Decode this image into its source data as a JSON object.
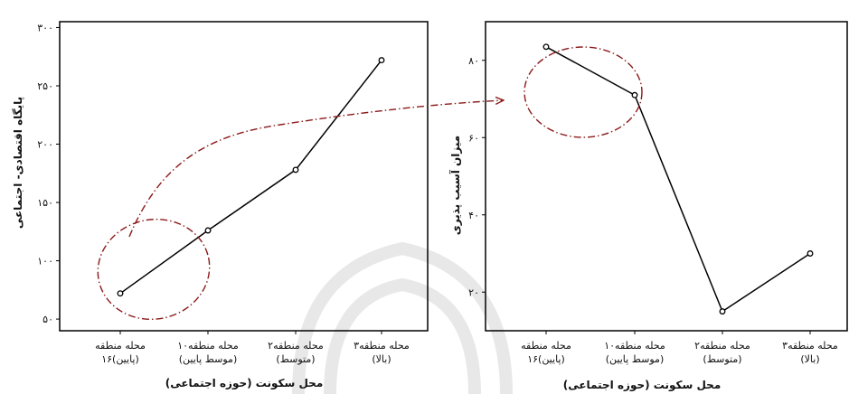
{
  "chart_data": [
    {
      "type": "line",
      "xlabel": "محل سکونت (حوزه اجتماعی)",
      "ylabel": "پایگاه اقتصادی- اجتماعی",
      "ylim": [
        40,
        305
      ],
      "yticks": [
        {
          "value": 50,
          "label": "۵۰"
        },
        {
          "value": 100,
          "label": "۱۰۰"
        },
        {
          "value": 150,
          "label": "۱۵۰"
        },
        {
          "value": 200,
          "label": "۲۰۰"
        },
        {
          "value": 250,
          "label": "۲۵۰"
        },
        {
          "value": 300,
          "label": "۳۰۰"
        }
      ],
      "categories": [
        [
          "محله منطقه",
          "۱۶(پایین)"
        ],
        [
          "محله منطقه۱۰",
          "(موسط پایین)"
        ],
        [
          "محله منطقه۲",
          "(متوسط)"
        ],
        [
          "محله منطقه۳",
          "(بالا)"
        ]
      ],
      "values": [
        72,
        126,
        178,
        272
      ],
      "grid": false,
      "annotation": "dashed-dotted ellipse around the first point with a dashed-dotted curved arrow pointing to the highlighted region of the right chart"
    },
    {
      "type": "line",
      "xlabel": "محل سکونت (حوزه اجتماعی)",
      "ylabel": "میزان آسیب پذیری",
      "ylim": [
        10,
        90
      ],
      "yticks": [
        {
          "value": 20,
          "label": "۲۰"
        },
        {
          "value": 40,
          "label": "۴۰"
        },
        {
          "value": 60,
          "label": "۶۰"
        },
        {
          "value": 80,
          "label": "۸۰"
        }
      ],
      "categories": [
        [
          "محله منطقه",
          "۱۶(پایین)"
        ],
        [
          "محله منطقه۱۰",
          "(موسط پایین)"
        ],
        [
          "محله منطقه۲",
          "(متوسط)"
        ],
        [
          "محله منطقه۳",
          "(بالا)"
        ]
      ],
      "values": [
        83.5,
        71,
        15,
        30
      ],
      "grid": false,
      "annotation": "dashed-dotted ellipse around the first two points"
    }
  ],
  "colors": {
    "line": "#000000",
    "annotation": "#8b1a1a",
    "watermark": "#e6e6e6"
  }
}
